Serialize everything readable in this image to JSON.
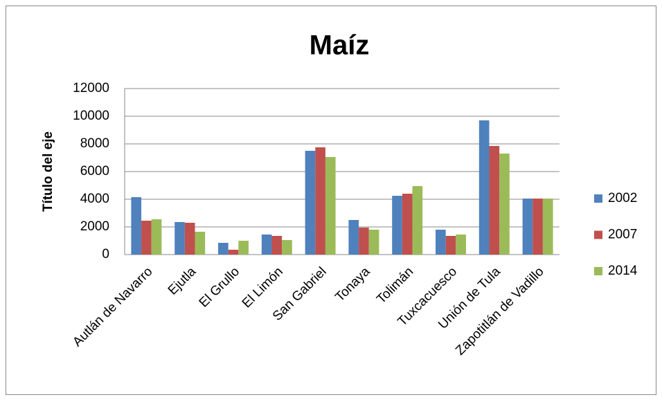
{
  "chart_data": {
    "type": "bar",
    "title": "Maíz",
    "y_label": "Título del eje",
    "categories": [
      "Autlán de Navarro",
      "Ejutla",
      "El Grullo",
      "El Limón",
      "San Gabriel",
      "Tonaya",
      "Tolimán",
      "Tuxcacuesco",
      "Unión de Tula",
      "Zapotitlán de Vadillo"
    ],
    "series": [
      {
        "name": "2002",
        "color": "#4f81bd",
        "values": [
          4150,
          2350,
          850,
          1450,
          7500,
          2500,
          4250,
          1800,
          9700,
          4050
        ]
      },
      {
        "name": "2007",
        "color": "#c0504d",
        "values": [
          2450,
          2300,
          350,
          1350,
          7750,
          1950,
          4400,
          1350,
          7850,
          4050
        ]
      },
      {
        "name": "2014",
        "color": "#9bbb59",
        "values": [
          2550,
          1650,
          1000,
          1050,
          7050,
          1800,
          4950,
          1450,
          7300,
          4050
        ]
      }
    ],
    "ylim": [
      0,
      12000
    ],
    "yticks": [
      0,
      2000,
      4000,
      6000,
      8000,
      10000,
      12000
    ],
    "grid": true,
    "legend": "right"
  }
}
